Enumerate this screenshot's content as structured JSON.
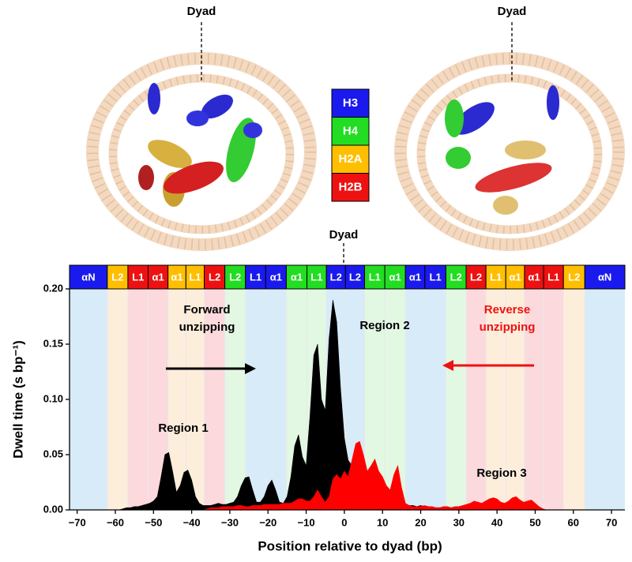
{
  "figure": {
    "top_labels": [
      "Dyad",
      "Dyad"
    ],
    "histone_legend": [
      {
        "label": "H3",
        "color": "#1a1aee"
      },
      {
        "label": "H4",
        "color": "#22dd22"
      },
      {
        "label": "H2A",
        "color": "#ffbf00"
      },
      {
        "label": "H2B",
        "color": "#ee1111"
      }
    ]
  },
  "chart_data": {
    "type": "area",
    "xlabel": "Position relative to dyad (bp)",
    "ylabel": "Dwell time (s bp⁻¹)",
    "dyad_label": "Dyad",
    "xlim": [
      -72,
      73.5
    ],
    "ylim": [
      0,
      0.2
    ],
    "xticks": [
      {
        "value": -70,
        "label": "−70"
      },
      {
        "value": -60,
        "label": "−60"
      },
      {
        "value": -50,
        "label": "−50"
      },
      {
        "value": -40,
        "label": "−40"
      },
      {
        "value": -30,
        "label": "−30"
      },
      {
        "value": -20,
        "label": "−20"
      },
      {
        "value": -10,
        "label": "−10"
      },
      0,
      10,
      20,
      30,
      40,
      50,
      60,
      70
    ],
    "yticks": [
      {
        "value": 0,
        "label": "0.00"
      },
      0.05,
      {
        "value": 0.1,
        "label": "0.10"
      },
      0.15,
      {
        "value": 0.2,
        "label": "0.20"
      }
    ],
    "segment_edges": [
      -72,
      -62.1,
      -56.7,
      -51.4,
      -46.2,
      -41.5,
      -36.7,
      -31.3,
      -25.9,
      -20.6,
      -15.2,
      -9.8,
      -4.7,
      0.3,
      5.3,
      10.6,
      16,
      21.1,
      26.6,
      31.9,
      37.1,
      42.3,
      47.2,
      52.2,
      57.4,
      63,
      73.5
    ],
    "segments": [
      {
        "label": "αN",
        "color": "#1a1aee",
        "tint": "#d7ecf8"
      },
      {
        "label": "L2",
        "color": "#ffbf00",
        "tint": "#fdeddb"
      },
      {
        "label": "L1",
        "color": "#ee1111",
        "tint": "#fbd9dc"
      },
      {
        "label": "α1",
        "color": "#ee1111",
        "tint": "#fbd9dc"
      },
      {
        "label": "α1",
        "color": "#ffbf00",
        "tint": "#fdeddb"
      },
      {
        "label": "L1",
        "color": "#ffbf00",
        "tint": "#fdeddb"
      },
      {
        "label": "L2",
        "color": "#ee1111",
        "tint": "#fbd9dc"
      },
      {
        "label": "L2",
        "color": "#22dd22",
        "tint": "#e2f8e2"
      },
      {
        "label": "L1",
        "color": "#1a1aee",
        "tint": "#d7ecf8"
      },
      {
        "label": "α1",
        "color": "#1a1aee",
        "tint": "#d7ecf8"
      },
      {
        "label": "α1",
        "color": "#22dd22",
        "tint": "#e2f8e2"
      },
      {
        "label": "L1",
        "color": "#22dd22",
        "tint": "#e2f8e2"
      },
      {
        "label": "L2",
        "color": "#1a1aee",
        "tint": "#d7ecf8"
      },
      {
        "label": "L2",
        "color": "#1a1aee",
        "tint": "#d7ecf8"
      },
      {
        "label": "L1",
        "color": "#22dd22",
        "tint": "#e2f8e2"
      },
      {
        "label": "α1",
        "color": "#22dd22",
        "tint": "#e2f8e2"
      },
      {
        "label": "α1",
        "color": "#1a1aee",
        "tint": "#d7ecf8"
      },
      {
        "label": "L1",
        "color": "#1a1aee",
        "tint": "#d7ecf8"
      },
      {
        "label": "L2",
        "color": "#22dd22",
        "tint": "#e2f8e2"
      },
      {
        "label": "L2",
        "color": "#ee1111",
        "tint": "#fbd9dc"
      },
      {
        "label": "L1",
        "color": "#ffbf00",
        "tint": "#fdeddb"
      },
      {
        "label": "α1",
        "color": "#ffbf00",
        "tint": "#fdeddb"
      },
      {
        "label": "α1",
        "color": "#ee1111",
        "tint": "#fbd9dc"
      },
      {
        "label": "L1",
        "color": "#ee1111",
        "tint": "#fbd9dc"
      },
      {
        "label": "L2",
        "color": "#ffbf00",
        "tint": "#fdeddb"
      },
      {
        "label": "αN",
        "color": "#1a1aee",
        "tint": "#d7ecf8"
      }
    ],
    "x": [
      -60,
      -59,
      -58,
      -57,
      -56,
      -55,
      -54,
      -53,
      -52,
      -51,
      -50,
      -49,
      -48,
      -47,
      -46,
      -45,
      -44,
      -43,
      -42,
      -41,
      -40,
      -39,
      -38,
      -37,
      -36,
      -35,
      -34,
      -33,
      -32,
      -31,
      -30,
      -29,
      -28,
      -27,
      -26,
      -25,
      -24,
      -23,
      -22,
      -21,
      -20,
      -19,
      -18,
      -17,
      -16,
      -15,
      -14,
      -13,
      -12,
      -11,
      -10,
      -9,
      -8,
      -7,
      -6,
      -5,
      -4,
      -3,
      -2,
      -1,
      0,
      1,
      2,
      3,
      4,
      5,
      6,
      7,
      8,
      9,
      10,
      11,
      12,
      13,
      14,
      15,
      16,
      17,
      18,
      19,
      20,
      21,
      22,
      23,
      24,
      25,
      26,
      27,
      28,
      29,
      30,
      31,
      32,
      33,
      34,
      35,
      36,
      37,
      38,
      39,
      40,
      41,
      42,
      43,
      44,
      45,
      46,
      47,
      48,
      49,
      50,
      51,
      52,
      53,
      54,
      55
    ],
    "series": [
      {
        "color": "#000000",
        "values": [
          0,
          0,
          0.001,
          0.002,
          0.002,
          0.003,
          0.003,
          0.004,
          0.005,
          0.006,
          0.008,
          0.012,
          0.03,
          0.05,
          0.052,
          0.035,
          0.016,
          0.022,
          0.034,
          0.036,
          0.027,
          0.012,
          0.006,
          0.004,
          0.004,
          0.004,
          0.005,
          0.006,
          0.005,
          0.005,
          0.006,
          0.007,
          0.012,
          0.022,
          0.029,
          0.03,
          0.018,
          0.007,
          0.007,
          0.012,
          0.022,
          0.027,
          0.018,
          0.007,
          0.006,
          0.012,
          0.03,
          0.058,
          0.068,
          0.048,
          0.04,
          0.085,
          0.14,
          0.15,
          0.1,
          0.09,
          0.155,
          0.19,
          0.17,
          0.11,
          0.065,
          0.045,
          0.04,
          0.042,
          0.03,
          0.022,
          0.018,
          0.016,
          0.013,
          0.012,
          0.011,
          0.01,
          0.01,
          0.012,
          0.011,
          0.008,
          0.005,
          0.004,
          0.004,
          0.003,
          0.004,
          0.003,
          0.003,
          0.002,
          0.002,
          0.002,
          0.001,
          0.001,
          0.001,
          0.001,
          0.001,
          0,
          0,
          0,
          0,
          0,
          0,
          0,
          0,
          0,
          0,
          0,
          0,
          0,
          0,
          0,
          0,
          0,
          0,
          0,
          0,
          0,
          0,
          0,
          0,
          0
        ]
      },
      {
        "color": "#ff0000",
        "values": [
          0,
          0,
          0,
          0,
          0,
          0,
          0,
          0,
          0,
          0,
          0,
          0,
          0,
          0,
          0,
          0,
          0,
          0,
          0,
          0,
          0,
          0,
          0,
          0,
          0.001,
          0.002,
          0.002,
          0.002,
          0.003,
          0.003,
          0.003,
          0.003,
          0.004,
          0.004,
          0.003,
          0.003,
          0.004,
          0.004,
          0.004,
          0.005,
          0.005,
          0.005,
          0.005,
          0.005,
          0.006,
          0.006,
          0.006,
          0.008,
          0.01,
          0.01,
          0.008,
          0.008,
          0.012,
          0.018,
          0.012,
          0.007,
          0.012,
          0.028,
          0.032,
          0.028,
          0.035,
          0.03,
          0.045,
          0.06,
          0.062,
          0.05,
          0.035,
          0.04,
          0.046,
          0.035,
          0.03,
          0.022,
          0.018,
          0.032,
          0.04,
          0.02,
          0.006,
          0.004,
          0.003,
          0.003,
          0.003,
          0.004,
          0.003,
          0.003,
          0.002,
          0.002,
          0.003,
          0.003,
          0.002,
          0.003,
          0.003,
          0.004,
          0.005,
          0.006,
          0.008,
          0.007,
          0.006,
          0.008,
          0.01,
          0.011,
          0.01,
          0.007,
          0.006,
          0.008,
          0.011,
          0.012,
          0.009,
          0.007,
          0.008,
          0.009,
          0.006,
          0.003,
          0.001,
          0,
          0,
          0
        ]
      }
    ],
    "annotations": [
      {
        "text": [
          "Region 1"
        ],
        "color": "#000000"
      },
      {
        "text": [
          "Region 2"
        ],
        "color": "#000000"
      },
      {
        "text": [
          "Region 3"
        ],
        "color": "#000000"
      },
      {
        "text": [
          "Forward",
          "unzipping"
        ],
        "color": "#000000"
      },
      {
        "text": [
          "Reverse",
          "unzipping"
        ],
        "color": "#ee1111"
      }
    ]
  }
}
